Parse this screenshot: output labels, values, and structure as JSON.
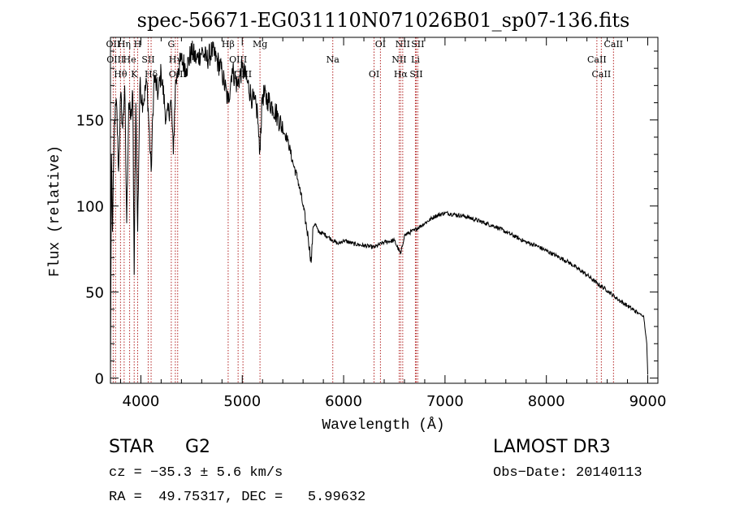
{
  "chart_data": {
    "type": "line",
    "title": "spec-56671-EG031110N071026B01_sp07-136.fits",
    "xlabel": "Wavelength (Å)",
    "ylabel": "Flux (relative)",
    "xlim": [
      3700,
      9100
    ],
    "ylim": [
      -3,
      198
    ],
    "x_ticks": [
      4000,
      5000,
      6000,
      7000,
      8000,
      9000
    ],
    "y_ticks": [
      0,
      50,
      100,
      150
    ],
    "grid": false,
    "series": [
      {
        "name": "spectrum",
        "x": [
          3700,
          3710,
          3720,
          3740,
          3760,
          3780,
          3800,
          3820,
          3840,
          3860,
          3880,
          3900,
          3920,
          3934,
          3950,
          3968,
          3990,
          4020,
          4060,
          4101,
          4130,
          4170,
          4200,
          4250,
          4300,
          4320,
          4340,
          4370,
          4400,
          4450,
          4500,
          4550,
          4600,
          4650,
          4700,
          4750,
          4800,
          4861,
          4900,
          4950,
          5000,
          5050,
          5100,
          5150,
          5170,
          5200,
          5250,
          5300,
          5350,
          5400,
          5450,
          5500,
          5550,
          5600,
          5650,
          5680,
          5700,
          5720,
          5750,
          5800,
          5850,
          5893,
          5950,
          6000,
          6100,
          6200,
          6300,
          6400,
          6500,
          6563,
          6600,
          6700,
          6800,
          6900,
          7000,
          7100,
          7200,
          7300,
          7400,
          7500,
          7600,
          7700,
          7800,
          7900,
          8000,
          8100,
          8200,
          8300,
          8400,
          8500,
          8600,
          8700,
          8800,
          8900,
          8960,
          8990,
          9000
        ],
        "y": [
          0,
          130,
          85,
          150,
          160,
          120,
          165,
          145,
          170,
          90,
          160,
          150,
          165,
          60,
          160,
          85,
          170,
          160,
          172,
          120,
          175,
          165,
          178,
          150,
          160,
          130,
          170,
          180,
          185,
          180,
          190,
          185,
          190,
          185,
          190,
          185,
          178,
          160,
          180,
          170,
          180,
          172,
          162,
          155,
          130,
          165,
          162,
          158,
          152,
          145,
          138,
          125,
          115,
          100,
          82,
          67,
          88,
          90,
          85,
          84,
          82,
          80,
          78,
          80,
          78,
          77,
          76,
          79,
          80,
          72,
          83,
          86,
          90,
          94,
          96,
          95,
          94,
          92,
          90,
          88,
          85,
          82,
          79,
          77,
          74,
          71,
          68,
          64,
          60,
          55,
          51,
          46,
          42,
          38,
          36,
          20,
          2
        ]
      }
    ],
    "line_annotations": [
      {
        "wavelength": 3727,
        "label": "OII"
      },
      {
        "wavelength": 3750,
        "label": "OIII"
      },
      {
        "wavelength": 3799,
        "label": "Hθ"
      },
      {
        "wavelength": 3835,
        "label": "Hη"
      },
      {
        "wavelength": 3889,
        "label": "He"
      },
      {
        "wavelength": 3934,
        "label": "K"
      },
      {
        "wavelength": 3968,
        "label": "H"
      },
      {
        "wavelength": 4072,
        "label": "SII"
      },
      {
        "wavelength": 4101,
        "label": "Hδ"
      },
      {
        "wavelength": 4300,
        "label": "G"
      },
      {
        "wavelength": 4340,
        "label": "Hγ"
      },
      {
        "wavelength": 4363,
        "label": "OIII"
      },
      {
        "wavelength": 4861,
        "label": "Hβ"
      },
      {
        "wavelength": 4959,
        "label": "OIII"
      },
      {
        "wavelength": 5007,
        "label": "OIII"
      },
      {
        "wavelength": 5175,
        "label": "Mg"
      },
      {
        "wavelength": 5893,
        "label": "Na"
      },
      {
        "wavelength": 6300,
        "label": "OI"
      },
      {
        "wavelength": 6363,
        "label": "OI"
      },
      {
        "wavelength": 6548,
        "label": "NII"
      },
      {
        "wavelength": 6563,
        "label": "Hα"
      },
      {
        "wavelength": 6583,
        "label": "NII"
      },
      {
        "wavelength": 6708,
        "label": "Li"
      },
      {
        "wavelength": 6716,
        "label": "SII"
      },
      {
        "wavelength": 6731,
        "label": "SII"
      },
      {
        "wavelength": 8498,
        "label": "CaII"
      },
      {
        "wavelength": 8542,
        "label": "CaII"
      },
      {
        "wavelength": 8662,
        "label": "CaII"
      }
    ]
  },
  "info": {
    "class_label": "STAR",
    "subclass_label": "G2",
    "survey": "LAMOST DR3",
    "cz": "cz = −35.3 ± 5.6 km/s",
    "obs_date": "Obs−Date: 20140113",
    "coords": "RA =  49.75317, DEC =   5.99632"
  },
  "colors": {
    "spectrum": "#000000",
    "line_marker": "#b22222",
    "background": "#ffffff"
  }
}
